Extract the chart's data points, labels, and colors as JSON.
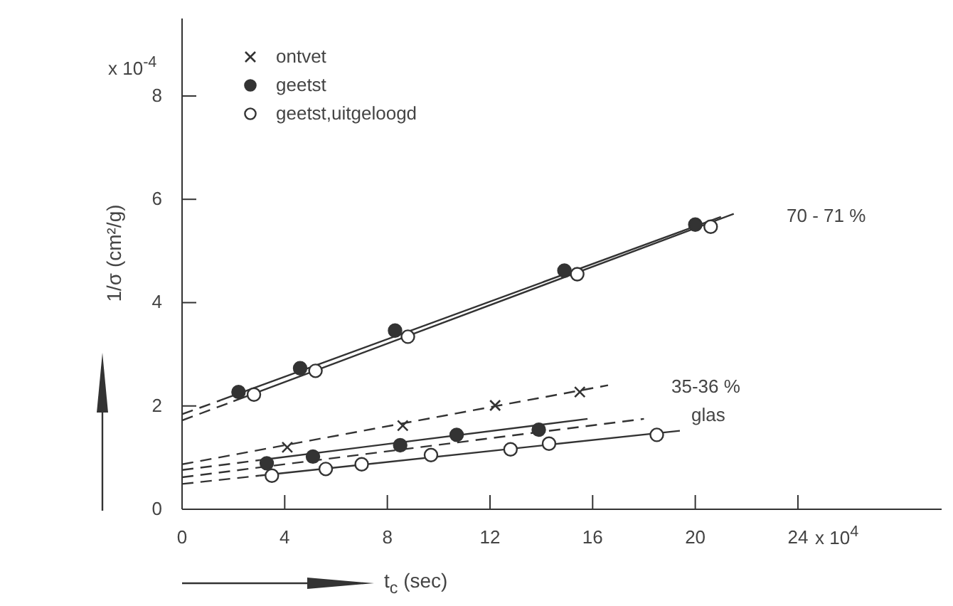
{
  "chart_data": {
    "type": "scatter",
    "xlabel": "t$_{c}$ (sec)",
    "ylabel": "1/σ (cm²/g)",
    "xlim": [
      0,
      29.6
    ],
    "ylim": [
      0,
      9.5
    ],
    "xticks": [
      0,
      4,
      8,
      12,
      16,
      20,
      24
    ],
    "yticks": [
      0,
      2,
      4,
      6,
      8
    ],
    "grid": false,
    "legend": "top left",
    "annotations": [
      "70 - 71 %",
      "35-36 %",
      "glas",
      "x 10$^{-4}$",
      "x 10$^{4}$"
    ],
    "series": [
      {
        "name": "ontvet",
        "marker": "cross",
        "color": "#333333",
        "x": [
          4.1,
          8.6,
          12.2,
          15.5
        ],
        "values": [
          1.2,
          1.62,
          2.01,
          2.27
        ]
      },
      {
        "name": "geetst",
        "marker": "circle",
        "color": "#333333",
        "x": [
          2.2,
          4.6,
          8.3,
          14.9,
          20.0
        ],
        "values": [
          2.27,
          2.73,
          3.46,
          4.62,
          5.51
        ]
      },
      {
        "name": "geetst,uitgeloogd",
        "marker": "circle",
        "color": "#ffffff",
        "x": [
          2.8,
          5.2,
          8.8,
          15.4,
          20.6
        ],
        "values": [
          2.22,
          2.68,
          3.34,
          4.55,
          5.47
        ]
      },
      {
        "marker": "circle",
        "color": "#333333",
        "x": [
          3.3,
          5.1,
          8.5,
          10.7,
          13.9
        ],
        "values": [
          0.89,
          1.02,
          1.24,
          1.44,
          1.54
        ]
      },
      {
        "marker": "circle",
        "color": "#ffffff",
        "x": [
          3.5,
          5.6,
          7.0,
          9.7,
          12.8,
          14.3,
          18.5
        ],
        "values": [
          0.65,
          0.78,
          0.87,
          1.05,
          1.16,
          1.27,
          1.44
        ]
      },
      {
        "type": "line",
        "marker": "none",
        "line_style": "solid",
        "color": "#333333",
        "x": [
          1.5,
          21.0
        ],
        "values": [
          2.11,
          5.66
        ]
      },
      {
        "type": "line",
        "marker": "none",
        "line_style": "dashed",
        "color": "#333333",
        "x": [
          0,
          1.5
        ],
        "values": [
          1.84,
          2.11
        ]
      },
      {
        "type": "line",
        "marker": "none",
        "line_style": "solid",
        "color": "#333333",
        "x": [
          2.0,
          21.5
        ],
        "values": [
          2.09,
          5.72
        ]
      },
      {
        "type": "line",
        "marker": "none",
        "line_style": "dashed",
        "color": "#333333",
        "x": [
          0,
          2.0
        ],
        "values": [
          1.72,
          2.09
        ]
      },
      {
        "type": "line",
        "marker": "none",
        "line_style": "dashed",
        "color": "#333333",
        "x": [
          0,
          16.6
        ],
        "values": [
          0.87,
          2.4
        ]
      },
      {
        "type": "line",
        "marker": "none",
        "line_style": "solid",
        "color": "#333333",
        "x": [
          3.0,
          15.8
        ],
        "values": [
          0.95,
          1.75
        ]
      },
      {
        "type": "line",
        "marker": "none",
        "line_style": "dashed",
        "color": "#333333",
        "x": [
          0,
          3.0
        ],
        "values": [
          0.76,
          0.95
        ]
      },
      {
        "type": "line",
        "marker": "none",
        "line_style": "dashed",
        "color": "#333333",
        "x": [
          0,
          18.0
        ],
        "values": [
          0.62,
          1.75
        ]
      },
      {
        "type": "line",
        "marker": "none",
        "line_style": "solid",
        "color": "#333333",
        "x": [
          3.0,
          19.4
        ],
        "values": [
          0.65,
          1.52
        ]
      },
      {
        "type": "line",
        "marker": "none",
        "line_style": "dashed",
        "color": "#333333",
        "x": [
          0,
          3.0
        ],
        "values": [
          0.49,
          0.65
        ]
      }
    ]
  }
}
